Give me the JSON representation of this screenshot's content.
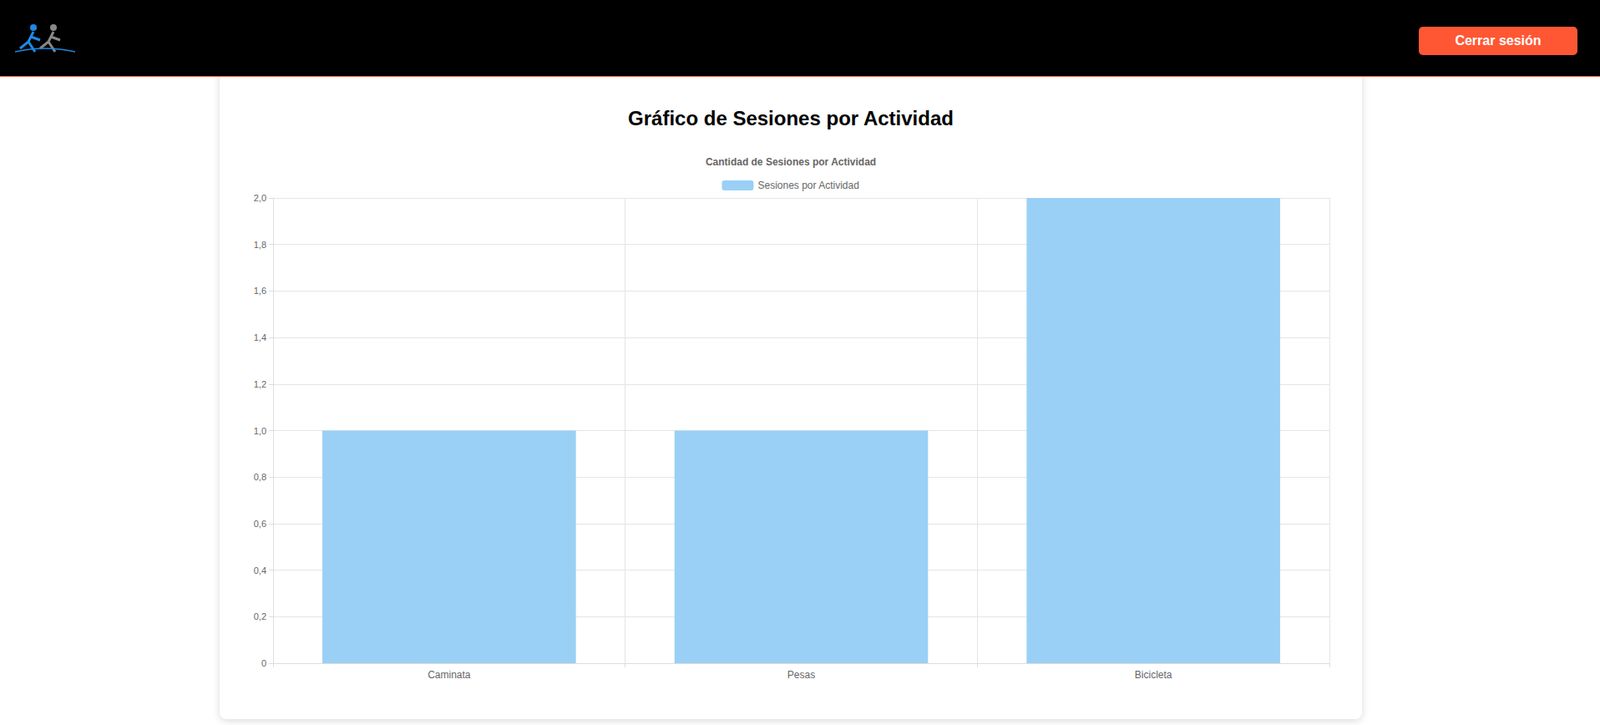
{
  "header": {
    "button": "Cerrar sesión"
  },
  "page": {
    "heading": "Gráfico de Sesiones por Actividad"
  },
  "chart_data": {
    "type": "bar",
    "title": "Cantidad de Sesiones por Actividad",
    "categories": [
      "Caminata",
      "Pesas",
      "Bicicleta"
    ],
    "series": [
      {
        "name": "Sesiones por Actividad",
        "color": "#9ad0f5",
        "values": [
          1,
          1,
          2
        ]
      }
    ],
    "ylim": [
      0,
      2
    ],
    "yticks": [
      0,
      {
        "value": 0.2,
        "label": "0,2"
      },
      {
        "value": 0.4,
        "label": "0,4"
      },
      {
        "value": 0.6,
        "label": "0,6"
      },
      {
        "value": 0.8,
        "label": "0,8"
      },
      {
        "value": 1,
        "label": "1,0"
      },
      {
        "value": 1.2,
        "label": "1,2"
      },
      {
        "value": 1.4,
        "label": "1,4"
      },
      {
        "value": 1.6,
        "label": "1,6"
      },
      {
        "value": 1.8,
        "label": "1,8"
      },
      {
        "value": 2,
        "label": "2,0"
      }
    ],
    "grid": true,
    "legend": "top"
  }
}
